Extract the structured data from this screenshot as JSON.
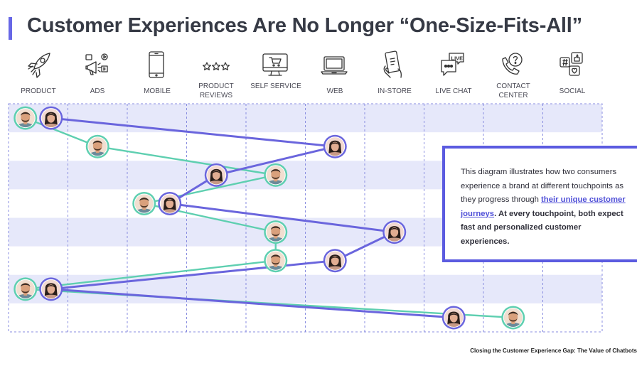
{
  "title": "Customer Experiences Are No Longer “One-Size-Fits-All”",
  "channels": [
    {
      "label": "PRODUCT",
      "icon": "rocket-icon"
    },
    {
      "label": "ADS",
      "icon": "megaphone-icon"
    },
    {
      "label": "MOBILE",
      "icon": "mobile-phone-icon"
    },
    {
      "label": "PRODUCT REVIEWS",
      "icon": "stars-rating-icon"
    },
    {
      "label": "SELF SERVICE",
      "icon": "self-service-kiosk-icon"
    },
    {
      "label": "WEB",
      "icon": "laptop-icon"
    },
    {
      "label": "IN-STORE",
      "icon": "phone-in-hand-icon"
    },
    {
      "label": "LIVE CHAT",
      "icon": "live-chat-icon"
    },
    {
      "label": "CONTACT CENTER",
      "icon": "phone-question-icon"
    },
    {
      "label": "SOCIAL",
      "icon": "social-media-icon"
    }
  ],
  "customers": {
    "man": {
      "color": "#5ecfb0",
      "avatar": "man-avatar-icon"
    },
    "woman": {
      "color": "#6a65dd",
      "avatar": "woman-avatar-icon"
    }
  },
  "journeys": {
    "man": [
      {
        "column": 0,
        "row": 0
      },
      {
        "column": 1,
        "row": 1
      },
      {
        "column": 4,
        "row": 2
      },
      {
        "column": 2,
        "row": 3
      },
      {
        "column": 4,
        "row": 4
      },
      {
        "column": 4,
        "row": 5
      },
      {
        "column": 0,
        "row": 6
      },
      {
        "column": 8,
        "row": 7
      }
    ],
    "woman": [
      {
        "column": 0,
        "row": 0
      },
      {
        "column": 5,
        "row": 1
      },
      {
        "column": 3,
        "row": 2
      },
      {
        "column": 2,
        "row": 3
      },
      {
        "column": 6,
        "row": 4
      },
      {
        "column": 5,
        "row": 5
      },
      {
        "column": 0,
        "row": 6
      },
      {
        "column": 7,
        "row": 7
      }
    ]
  },
  "callout": {
    "text_before": "This diagram illustrates how two consumers experience a brand at different touchpoints as they progress through ",
    "link": "their unique customer journeys",
    "text_after": "At every touchpoint, both expect fast and personalized customer experiences."
  },
  "footer": "Closing the Customer Experience Gap: The Value of Chatbots"
}
